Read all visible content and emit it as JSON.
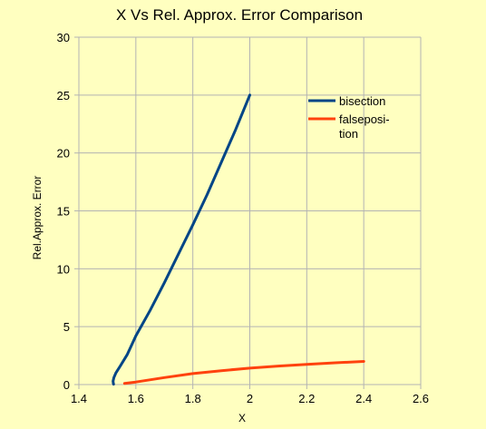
{
  "chart_data": {
    "type": "line",
    "title": "X Vs Rel. Approx. Error Comparison",
    "xlabel": "X",
    "ylabel": "Rel.Approx. Error",
    "xlim": [
      1.4,
      2.6
    ],
    "ylim": [
      0,
      30
    ],
    "xticks": [
      "1.4",
      "1.6",
      "1.8",
      "2",
      "2.2",
      "2.4",
      "2.6"
    ],
    "yticks": [
      "0",
      "5",
      "10",
      "15",
      "20",
      "25",
      "30"
    ],
    "grid": true,
    "legend": "right",
    "series": [
      {
        "name": "bisection",
        "color": "#004586",
        "points": [
          [
            2.0,
            25.0
          ],
          [
            1.95,
            22.0
          ],
          [
            1.9,
            19.2
          ],
          [
            1.85,
            16.4
          ],
          [
            1.8,
            13.8
          ],
          [
            1.75,
            11.3
          ],
          [
            1.7,
            8.8
          ],
          [
            1.65,
            6.4
          ],
          [
            1.6,
            4.2
          ],
          [
            1.57,
            2.6
          ],
          [
            1.545,
            1.6
          ],
          [
            1.53,
            1.0
          ],
          [
            1.523,
            0.6
          ],
          [
            1.52,
            0.3
          ],
          [
            1.521,
            0.1
          ],
          [
            1.522,
            0.03
          ]
        ]
      },
      {
        "name": "falseposi-\ntion",
        "color": "#ff420e",
        "points": [
          [
            1.56,
            0.1
          ],
          [
            1.6,
            0.22
          ],
          [
            1.7,
            0.6
          ],
          [
            1.8,
            0.95
          ],
          [
            1.9,
            1.2
          ],
          [
            2.0,
            1.42
          ],
          [
            2.1,
            1.6
          ],
          [
            2.2,
            1.75
          ],
          [
            2.3,
            1.88
          ],
          [
            2.4,
            2.0
          ]
        ]
      }
    ]
  }
}
